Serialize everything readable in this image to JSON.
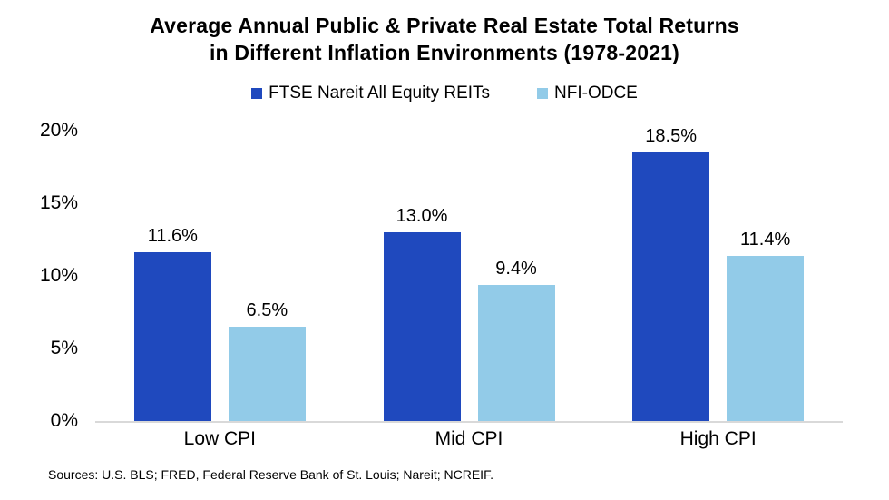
{
  "title": {
    "line1": "Average Annual Public & Private Real Estate Total Returns",
    "line2": "in Different Inflation Environments (1978-2021)"
  },
  "legend": [
    {
      "label": "FTSE Nareit All Equity REITs",
      "color": "#1f49be"
    },
    {
      "label": "NFI-ODCE",
      "color": "#92cbe8"
    }
  ],
  "source_note": "Sources: U.S. BLS; FRED, Federal Reserve Bank of St. Louis; Nareit; NCREIF.",
  "colors": {
    "series1": "#1f49be",
    "series2": "#92cbe8",
    "axis_line": "#d9d9d9",
    "text": "#000000",
    "background": "#ffffff"
  },
  "chart_data": {
    "type": "bar",
    "title": "Average Annual Public & Private Real Estate Total Returns in Different Inflation Environments (1978-2021)",
    "categories": [
      "Low CPI",
      "Mid CPI",
      "High CPI"
    ],
    "series": [
      {
        "name": "FTSE Nareit All Equity REITs",
        "color": "#1f49be",
        "values": [
          11.6,
          13.0,
          18.5
        ],
        "labels": [
          "11.6%",
          "13.0%",
          "18.5%"
        ]
      },
      {
        "name": "NFI-ODCE",
        "color": "#92cbe8",
        "values": [
          6.5,
          9.4,
          11.4
        ],
        "labels": [
          "6.5%",
          "9.4%",
          "11.4%"
        ]
      }
    ],
    "xlabel": "",
    "ylabel": "",
    "ylim": [
      0,
      20
    ],
    "yticks": [
      0,
      5,
      10,
      15,
      20
    ],
    "ytick_labels": [
      "0%",
      "5%",
      "10%",
      "15%",
      "20%"
    ],
    "grid": false,
    "data_labels": true,
    "legend_position": "top"
  }
}
